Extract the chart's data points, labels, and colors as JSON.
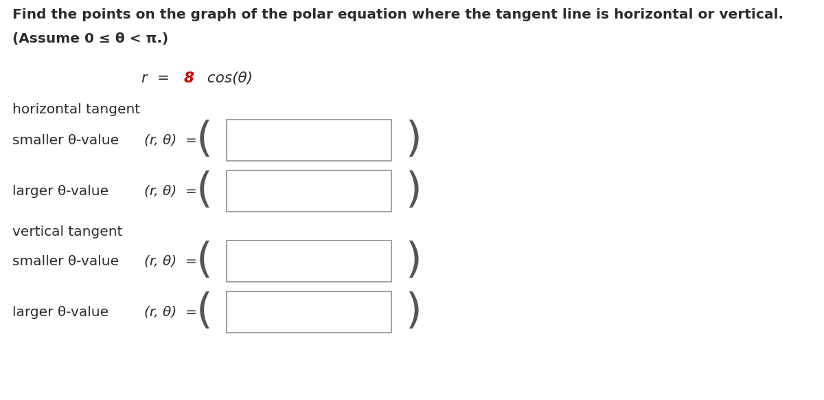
{
  "title_line1": "Find the points on the graph of the polar equation where the tangent line is horizontal or vertical.",
  "title_line2": "(Assume 0 ≤ θ < π.)",
  "equation_r": "r",
  "equation_eq": " = ",
  "equation_number": "8",
  "equation_suffix": " cos(θ)",
  "section1_label": "horizontal tangent",
  "section2_label": "vertical tangent",
  "row1_label": "smaller θ-value",
  "row2_label": "larger θ-value",
  "row3_label": "smaller θ-value",
  "row4_label": "larger θ-value",
  "rtheta_label": "(r, θ)  =",
  "bg_color": "#ffffff",
  "text_color": "#2b2b2b",
  "red_color": "#cc0000",
  "box_edge_color": "#999999",
  "paren_color": "#555555",
  "font_size_title": 14.5,
  "font_size_body": 14.5,
  "font_size_eq": 15.5,
  "paren_fontsize": 44
}
